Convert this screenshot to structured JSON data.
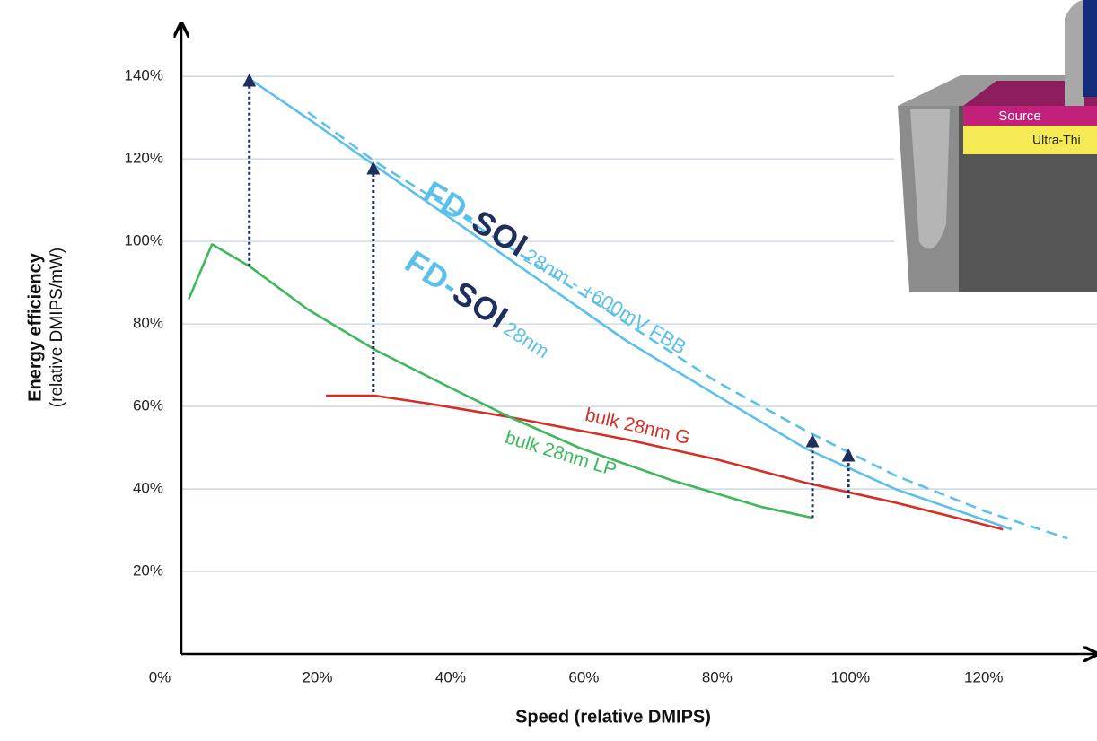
{
  "chart_data": {
    "type": "line",
    "x_label": "Speed (relative DMIPS)",
    "y_label": "Energy efficiency",
    "y_sublabel": "(relative DMIPS/mW)",
    "xlim": [
      0,
      137
    ],
    "ylim": [
      0,
      152
    ],
    "xticks": [
      {
        "value": 20,
        "label": "20%"
      },
      {
        "value": 40,
        "label": "40%"
      },
      {
        "value": 60,
        "label": "60%"
      },
      {
        "value": 80,
        "label": "80%"
      },
      {
        "value": 100,
        "label": "100%"
      },
      {
        "value": 120,
        "label": "120%"
      }
    ],
    "yticks": [
      {
        "value": 0,
        "label": "0%"
      },
      {
        "value": 20,
        "label": "20%"
      },
      {
        "value": 40,
        "label": "40%"
      },
      {
        "value": 60,
        "label": "60%"
      },
      {
        "value": 80,
        "label": "80%"
      },
      {
        "value": 100,
        "label": "100%"
      },
      {
        "value": 120,
        "label": "120%"
      },
      {
        "value": 140,
        "label": "140%"
      }
    ],
    "grid": true,
    "logo": {
      "prefix": "FD-",
      "suffix": "SOI",
      "prefix_color": "#5bc0eb",
      "suffix_color": "#1f2f5c"
    },
    "series": [
      {
        "name": "28nm - +600mV FBB",
        "color": "#5bc0eb",
        "dashed": true,
        "logo": true,
        "x": [
          18.6,
          28.7,
          39.4,
          52.9,
          66.4,
          79.8,
          93.3,
          106.7,
          120.2,
          132.6
        ],
        "values": [
          131.3,
          119.3,
          108.5,
          94.3,
          80.2,
          66.1,
          54.1,
          43.3,
          34.6,
          28
        ]
      },
      {
        "name": "28nm",
        "color": "#5bc0eb",
        "dashed": false,
        "logo": true,
        "x": [
          10.1,
          19.2,
          28.7,
          39.4,
          52.9,
          66.4,
          79.8,
          93.3,
          106.7,
          124.2
        ],
        "values": [
          139.1,
          129.1,
          118.3,
          106.3,
          91.1,
          75.9,
          62.8,
          49.8,
          40,
          30.2
        ]
      },
      {
        "name": "bulk 28nm G",
        "color": "#d42f26",
        "dashed": false,
        "logo": false,
        "x": [
          21.3,
          28.7,
          36.7,
          48.9,
          66.4,
          79.8,
          93.3,
          106.7,
          122.9
        ],
        "values": [
          62.6,
          62.6,
          60.7,
          57.4,
          52,
          47.2,
          41.5,
          36.7,
          30.2
        ]
      },
      {
        "name": "bulk 28nm LP",
        "color": "#3db85a",
        "dashed": false,
        "logo": false,
        "x": [
          0.7,
          4.2,
          9.8,
          18.6,
          28.7,
          39.4,
          48.9,
          59.6,
          73,
          86.5,
          94.3
        ],
        "values": [
          86,
          99.3,
          94,
          83.5,
          73.7,
          65,
          57.4,
          49.8,
          42.2,
          35.7,
          33
        ]
      }
    ],
    "arrows": [
      {
        "x": 9.8,
        "from": 94,
        "to": 140
      },
      {
        "x": 28.4,
        "from": 63.5,
        "to": 118.7
      },
      {
        "x": 94.3,
        "from": 33,
        "to": 52.6
      },
      {
        "x": 99.7,
        "from": 37.8,
        "to": 49.1
      }
    ],
    "inset_labels": [
      "Source",
      "Ultra-Thi"
    ]
  }
}
